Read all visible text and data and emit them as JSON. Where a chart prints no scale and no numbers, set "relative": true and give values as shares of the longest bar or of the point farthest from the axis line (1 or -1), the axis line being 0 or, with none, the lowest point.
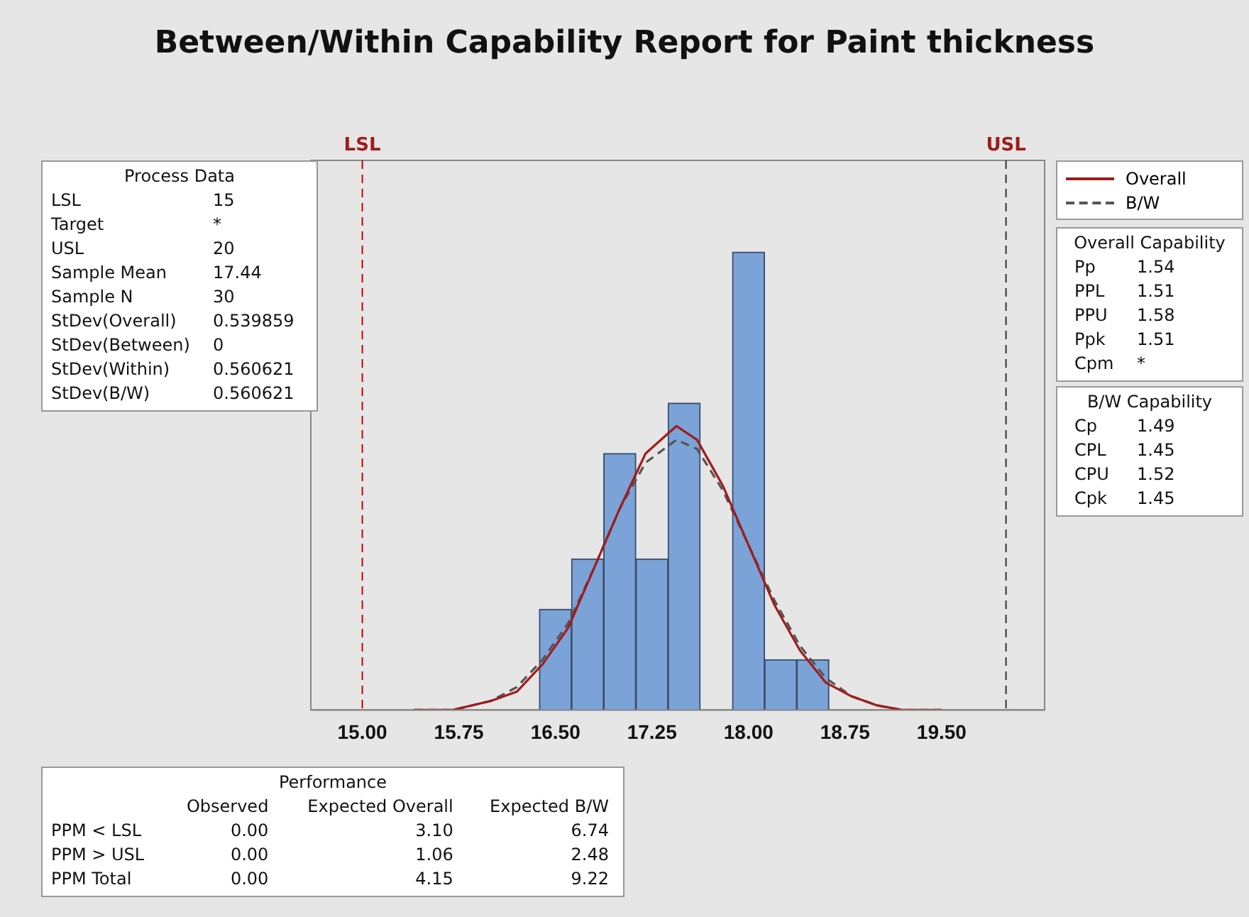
{
  "chart_data": [
    {
      "type": "histogram",
      "title": "Between/Within Capability Report for Paint thickness",
      "relative": true,
      "color": "#7ba3d8",
      "bins": [
        16.375,
        16.625,
        16.875,
        17.125,
        17.375,
        17.625,
        17.875,
        18.125,
        18.375,
        18.625
      ],
      "values": [
        0.22,
        0.33,
        0.56,
        0.33,
        0.67,
        0,
        1,
        0.11,
        0.11
      ],
      "series": [
        {
          "name": "Overall",
          "type": "line",
          "color": "#a01c1c",
          "line_style": "solid",
          "x": [
            15.4,
            15.7,
            16.0,
            16.2,
            16.4,
            16.6,
            16.8,
            17.0,
            17.2,
            17.44,
            17.6,
            17.8,
            18.0,
            18.2,
            18.4,
            18.6,
            18.8,
            19.0,
            19.2,
            19.5
          ],
          "values": [
            0,
            0,
            0.02,
            0.04,
            0.1,
            0.18,
            0.31,
            0.44,
            0.56,
            0.62,
            0.59,
            0.49,
            0.36,
            0.23,
            0.13,
            0.06,
            0.03,
            0.01,
            0,
            0
          ]
        },
        {
          "name": "B/W",
          "type": "line",
          "color": "#555555",
          "line_style": "dashed",
          "x": [
            15.4,
            15.7,
            16.0,
            16.2,
            16.4,
            16.6,
            16.8,
            17.0,
            17.2,
            17.44,
            17.6,
            17.8,
            18.0,
            18.2,
            18.4,
            18.6,
            18.8,
            19.0,
            19.2,
            19.5
          ],
          "values": [
            0,
            0,
            0.02,
            0.05,
            0.11,
            0.19,
            0.31,
            0.44,
            0.54,
            0.59,
            0.57,
            0.48,
            0.36,
            0.24,
            0.14,
            0.07,
            0.03,
            0.01,
            0,
            0
          ]
        }
      ],
      "xlim": [
        14.6,
        20.3
      ],
      "xticks": [
        {
          "value": 15,
          "label": "15.00"
        },
        {
          "value": 15.75,
          "label": "15.75"
        },
        {
          "value": 16.5,
          "label": "16.50"
        },
        {
          "value": 17.25,
          "label": "17.25"
        },
        {
          "value": 18,
          "label": "18.00"
        },
        {
          "value": 18.75,
          "label": "18.75"
        },
        {
          "value": 19.5,
          "label": "19.50"
        }
      ],
      "ref_lines": [
        {
          "axis": "x",
          "value": 15,
          "label": "LSL",
          "color": "#c00000",
          "line_style": "dashed"
        },
        {
          "axis": "x",
          "value": 20,
          "label": "USL",
          "color": "#333333",
          "line_style": "dashed"
        }
      ],
      "legend": "top right"
    },
    {
      "type": "other",
      "title": "Process Data",
      "categories": [
        "LSL",
        "Target",
        "USL",
        "Sample Mean",
        "Sample N",
        "StDev(Overall)",
        "StDev(Between)",
        "StDev(Within)",
        "StDev(B/W)"
      ],
      "value_labels": [
        "15",
        "*",
        "20",
        "17.44",
        "30",
        "0.539859",
        "0",
        "0.560621",
        "0.560621"
      ]
    },
    {
      "type": "other",
      "title": "Overall Capability",
      "categories": [
        "Pp",
        "PPL",
        "PPU",
        "Ppk",
        "Cpm"
      ],
      "value_labels": [
        "1.54",
        "1.51",
        "1.58",
        "1.51",
        "*"
      ]
    },
    {
      "type": "other",
      "title": "B/W Capability",
      "categories": [
        "Cp",
        "CPL",
        "CPU",
        "Cpk"
      ],
      "value_labels": [
        "1.49",
        "1.45",
        "1.52",
        "1.45"
      ]
    },
    {
      "type": "other",
      "title": "Performance",
      "categories": [
        "PPM < LSL",
        "PPM > USL",
        "PPM Total"
      ],
      "series": [
        {
          "name": "Observed",
          "values": [
            0,
            0,
            0
          ],
          "value_labels": [
            "0.00",
            "0.00",
            "0.00"
          ]
        },
        {
          "name": "Expected Overall",
          "values": [
            3.1,
            1.06,
            4.15
          ],
          "value_labels": [
            "3.10",
            "1.06",
            "4.15"
          ]
        },
        {
          "name": "Expected B/W",
          "values": [
            6.74,
            2.48,
            9.22
          ],
          "value_labels": [
            "6.74",
            "2.48",
            "9.22"
          ]
        }
      ]
    }
  ]
}
